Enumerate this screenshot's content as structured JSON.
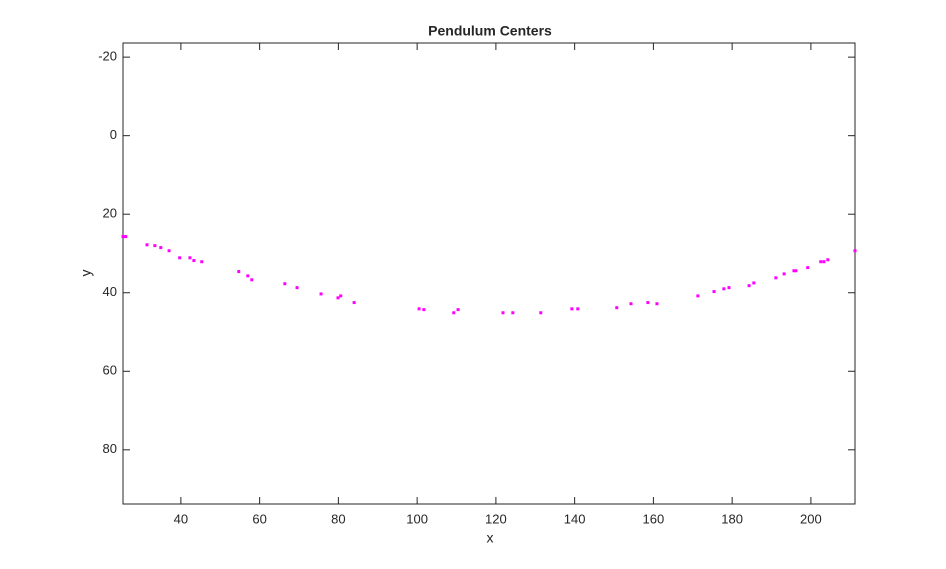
{
  "chart_data": {
    "type": "scatter",
    "title": "Pendulum Centers",
    "x_label": "x",
    "y_label": "y",
    "x": [
      25.3,
      26.0,
      31.4,
      33.4,
      34.9,
      37.0,
      39.7,
      42.3,
      43.3,
      45.3,
      54.7,
      57.0,
      58.0,
      66.4,
      69.5,
      75.6,
      79.9,
      80.6,
      84.0,
      100.5,
      101.7,
      109.3,
      110.4,
      121.8,
      124.3,
      131.4,
      139.3,
      140.8,
      150.7,
      154.3,
      158.6,
      160.9,
      171.3,
      175.4,
      177.9,
      179.2,
      184.3,
      185.5,
      191.1,
      193.2,
      195.7,
      196.2,
      199.2,
      202.5,
      203.3,
      204.3,
      211.2
    ],
    "series": [
      {
        "color": "#ff00ff",
        "values": [
          25.7,
          25.7,
          27.8,
          28.0,
          28.5,
          29.3,
          31.1,
          31.1,
          31.8,
          32.1,
          34.6,
          35.7,
          36.7,
          37.7,
          38.7,
          40.3,
          41.3,
          40.8,
          42.5,
          44.1,
          44.3,
          45.1,
          44.3,
          45.1,
          45.1,
          45.1,
          44.1,
          44.1,
          43.8,
          42.8,
          42.5,
          42.8,
          40.8,
          39.7,
          39.0,
          38.7,
          38.2,
          37.5,
          36.2,
          35.2,
          34.4,
          34.4,
          33.6,
          32.1,
          32.1,
          31.6,
          29.3
        ]
      }
    ],
    "xlim": [
      25.3,
      211.2
    ],
    "xticks": [
      40,
      60,
      80,
      100,
      120,
      140,
      160,
      180,
      200
    ],
    "ylim": [
      -23.6,
      93.8
    ],
    "yticks": [
      -20,
      0,
      20,
      40,
      60,
      80
    ],
    "y_reversed": true,
    "grid": false
  }
}
